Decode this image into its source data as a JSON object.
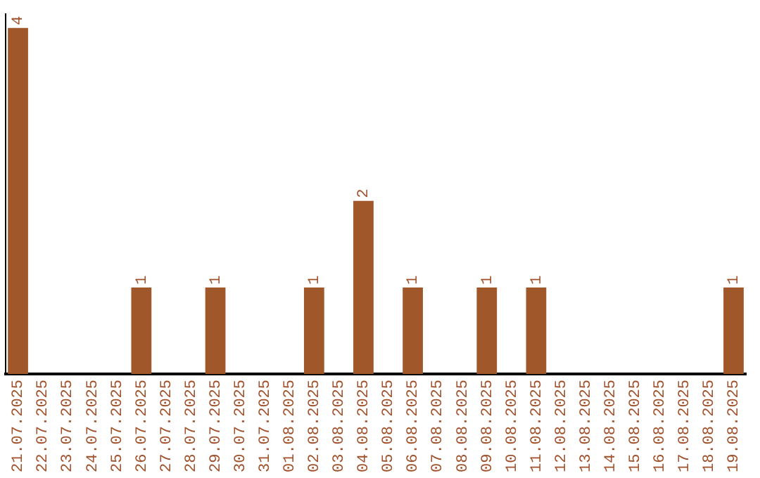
{
  "chart_data": {
    "type": "bar",
    "categories": [
      "21.07.2025",
      "22.07.2025",
      "23.07.2025",
      "24.07.2025",
      "25.07.2025",
      "26.07.2025",
      "27.07.2025",
      "28.07.2025",
      "29.07.2025",
      "30.07.2025",
      "31.07.2025",
      "01.08.2025",
      "02.08.2025",
      "03.08.2025",
      "04.08.2025",
      "05.08.2025",
      "06.08.2025",
      "07.08.2025",
      "08.08.2025",
      "09.08.2025",
      "10.08.2025",
      "11.08.2025",
      "12.08.2025",
      "13.08.2025",
      "14.08.2025",
      "15.08.2025",
      "16.08.2025",
      "17.08.2025",
      "18.08.2025",
      "19.08.2025"
    ],
    "values": [
      4,
      0,
      0,
      0,
      0,
      1,
      0,
      0,
      1,
      0,
      0,
      0,
      1,
      0,
      2,
      0,
      1,
      0,
      0,
      1,
      0,
      1,
      0,
      0,
      0,
      0,
      0,
      0,
      0,
      1
    ],
    "value_labels": [
      "4",
      null,
      null,
      null,
      null,
      "1",
      null,
      null,
      "1",
      null,
      null,
      null,
      "1",
      null,
      "2",
      null,
      "1",
      null,
      null,
      "1",
      null,
      "1",
      null,
      null,
      null,
      null,
      null,
      null,
      null,
      "1"
    ],
    "color": "#a0572a",
    "grid": false,
    "legend": false,
    "tick_labels": "x"
  }
}
